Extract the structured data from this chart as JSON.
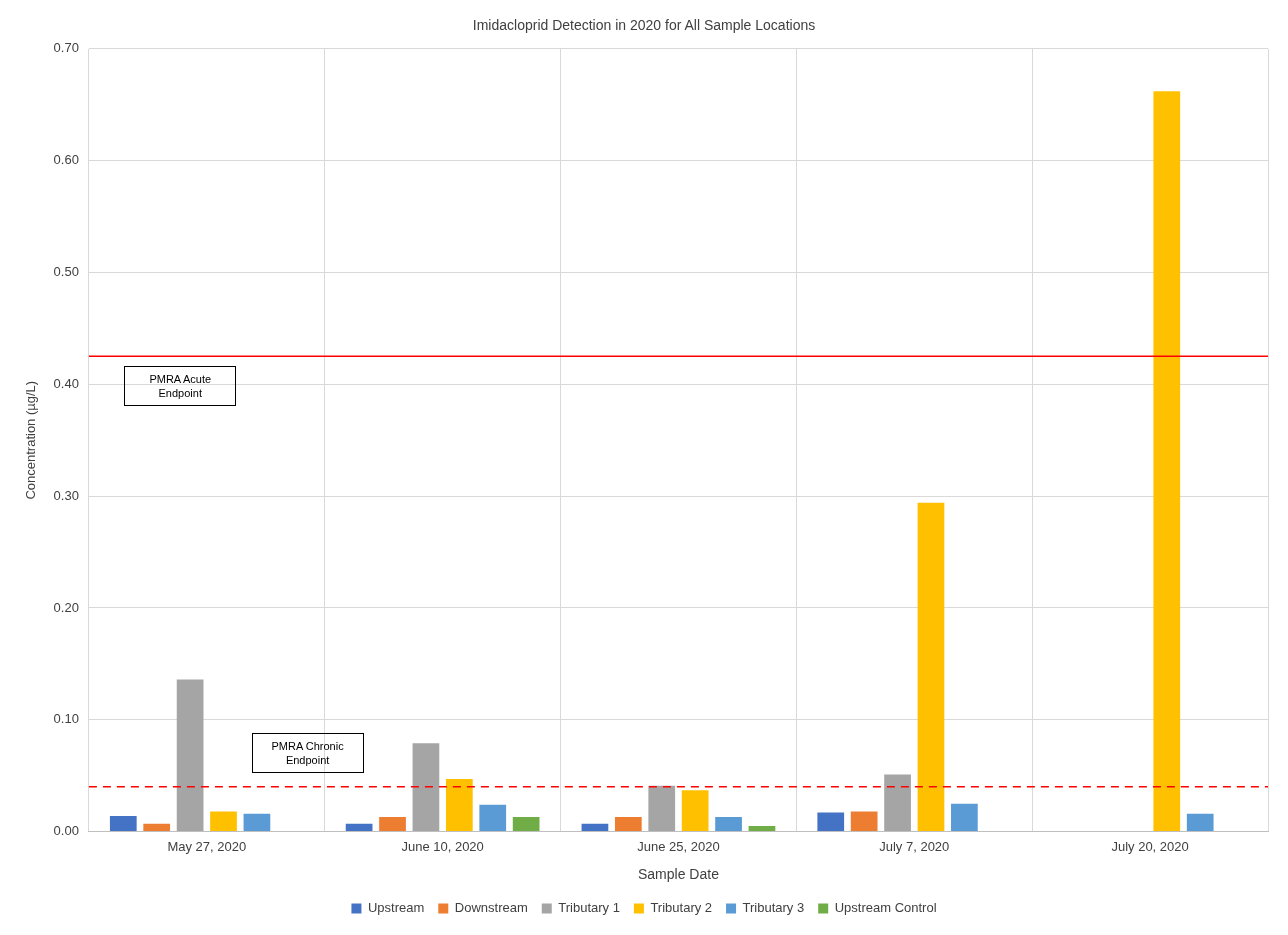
{
  "chart_data": {
    "type": "bar",
    "title": "Imidacloprid Detection in 2020 for All Sample Locations",
    "xlabel": "Sample Date",
    "ylabel": "Concentration (µg/L)",
    "categories": [
      "May 27, 2020",
      "June 10, 2020",
      "June 25, 2020",
      "July 7, 2020",
      "July 20, 2020"
    ],
    "series": [
      {
        "name": "Upstream",
        "color": "#4472c4",
        "values": [
          0.014,
          0.007,
          0.007,
          0.017,
          null
        ]
      },
      {
        "name": "Downstream",
        "color": "#ed7d31",
        "values": [
          0.007,
          0.013,
          0.013,
          0.018,
          null
        ]
      },
      {
        "name": "Tributary 1",
        "color": "#a5a5a5",
        "values": [
          0.136,
          0.079,
          0.041,
          0.051,
          null
        ]
      },
      {
        "name": "Tributary 2",
        "color": "#ffc000",
        "values": [
          0.018,
          0.047,
          0.037,
          0.294,
          0.662
        ]
      },
      {
        "name": "Tributary 3",
        "color": "#5b9bd5",
        "values": [
          0.016,
          0.024,
          0.013,
          0.025,
          0.016
        ]
      },
      {
        "name": "Upstream Control",
        "color": "#70ad47",
        "values": [
          null,
          0.013,
          0.005,
          null,
          null
        ]
      }
    ],
    "ylim": [
      0,
      0.7
    ],
    "yticks": [
      {
        "value": 0,
        "label": "0.00"
      },
      {
        "value": 0.1,
        "label": "0.10"
      },
      {
        "value": 0.2,
        "label": "0.20"
      },
      {
        "value": 0.3,
        "label": "0.30"
      },
      {
        "value": 0.4,
        "label": "0.40"
      },
      {
        "value": 0.5,
        "label": "0.50"
      },
      {
        "value": 0.6,
        "label": "0.60"
      },
      {
        "value": 0.7,
        "label": "0.70"
      }
    ],
    "ref_lines": [
      {
        "axis": "y",
        "value": 0.425,
        "label": "PMRA Acute Endpoint",
        "color": "#ff0000",
        "line_style": "solid"
      },
      {
        "axis": "y",
        "value": 0.04,
        "label": "PMRA Chronic Endpoint",
        "color": "#ff0000",
        "line_style": "dashed"
      }
    ],
    "grid": true,
    "legend": "bottom"
  }
}
